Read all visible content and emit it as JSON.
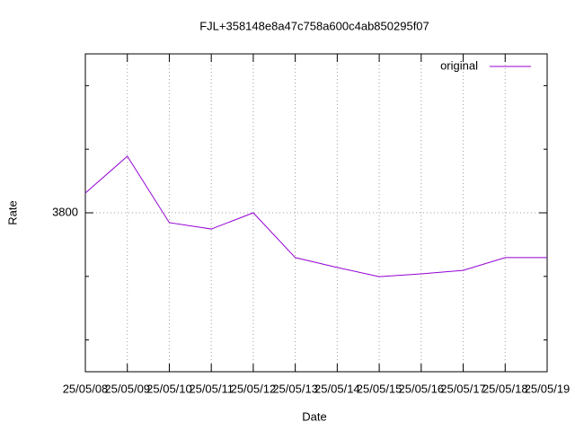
{
  "chart_data": {
    "type": "line",
    "title": "FJL+358148e8a47c758a600c4ab850295f07",
    "x_label": "Date",
    "y_label": "Rate",
    "categories": [
      "25/05/08",
      "25/05/09",
      "25/05/10",
      "25/05/11",
      "25/05/12",
      "25/05/13",
      "25/05/14",
      "25/05/15",
      "25/05/16",
      "25/05/17",
      "25/05/18",
      "25/05/19"
    ],
    "series": [
      {
        "name": "original",
        "color": "#9400d3",
        "values": [
          3806.2,
          3817.8,
          3796.9,
          3794.9,
          3800,
          3785.9,
          3782.8,
          3779.9,
          3780.8,
          3781.9,
          3785.9,
          3785.9
        ]
      }
    ],
    "ylim": [
      3750,
      3850
    ],
    "yticks": [
      3800
    ],
    "yminorticks": [
      3760,
      3780,
      3820,
      3840
    ],
    "grid": true,
    "legend": "top-right"
  }
}
